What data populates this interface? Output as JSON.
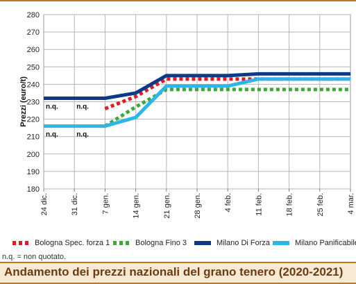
{
  "colors": {
    "accent_rule": "#c7751d",
    "title_text": "#6b3b12",
    "title_bg": "#f7ead4"
  },
  "chart_data": {
    "type": "line",
    "title": "Andamento dei prezzi nazionali del grano tenero (2020-2021)",
    "ylabel": "Prezzi (euro/t)",
    "xlabel": "",
    "ylim": [
      180,
      280
    ],
    "yticks": [
      180,
      190,
      200,
      210,
      220,
      230,
      240,
      250,
      260,
      270,
      280
    ],
    "grid": true,
    "categories": [
      "24 dic.",
      "31 dic.",
      "7 gen.",
      "14 gen.",
      "21 gen.",
      "28 gen.",
      "4 feb.",
      "11 feb.",
      "18 feb.",
      "25 feb.",
      "4 mar."
    ],
    "series": [
      {
        "name": "Bologna Spec. forza 1",
        "color": "#e11b22",
        "style": "dotted",
        "values": [
          null,
          null,
          226,
          233,
          243,
          243,
          243,
          243,
          243,
          243,
          243
        ]
      },
      {
        "name": "Bologna Fino 3",
        "color": "#3aa935",
        "style": "dotted",
        "values": [
          null,
          null,
          216,
          227,
          237,
          237,
          237,
          237,
          237,
          237,
          237
        ]
      },
      {
        "name": "Milano Di Forza",
        "color": "#0b3a87",
        "style": "solid",
        "values": [
          232,
          232,
          232,
          235,
          245,
          245,
          245,
          246,
          246,
          246,
          246
        ]
      },
      {
        "name": "Milano Panificabile",
        "color": "#2fb5e6",
        "style": "solid",
        "values": [
          216,
          216,
          216,
          221,
          239,
          239,
          239,
          243,
          243,
          243,
          243
        ]
      }
    ],
    "annotations": [
      {
        "text": "n.q.",
        "x": "24 dic.",
        "y": 232
      },
      {
        "text": "n.q.",
        "x": "31 dic.",
        "y": 232
      },
      {
        "text": "n.q.",
        "x": "24 dic.",
        "y": 216
      },
      {
        "text": "n.q.",
        "x": "31 dic.",
        "y": 216
      }
    ],
    "legend_position": "bottom"
  },
  "note": "n.q. = non quotato."
}
